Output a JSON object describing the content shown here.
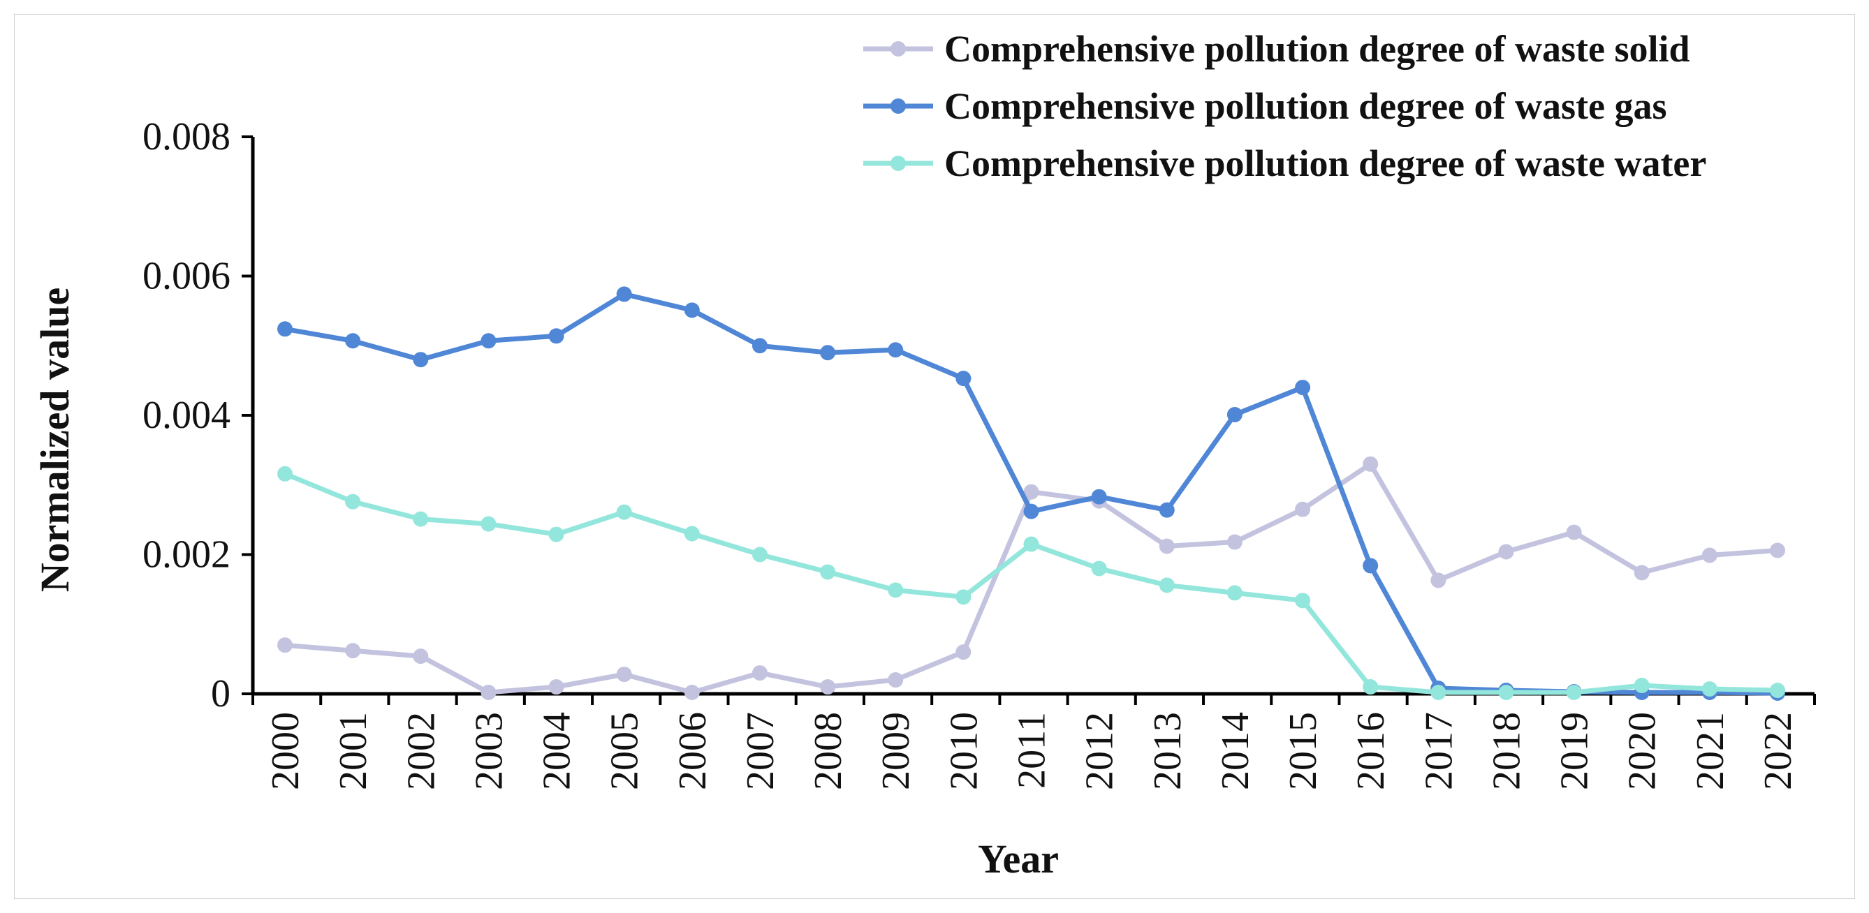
{
  "chart_data": {
    "type": "line",
    "title": "",
    "xlabel": "Year",
    "ylabel": "Normalized value",
    "ylim": [
      0,
      0.008
    ],
    "yticks": [
      {
        "value": 0,
        "label": "0"
      },
      {
        "value": 0.002,
        "label": "0.002"
      },
      {
        "value": 0.004,
        "label": "0.004"
      },
      {
        "value": 0.006,
        "label": "0.006"
      },
      {
        "value": 0.008,
        "label": "0.008"
      }
    ],
    "categories": [
      "2000",
      "2001",
      "2002",
      "2003",
      "2004",
      "2005",
      "2006",
      "2007",
      "2008",
      "2009",
      "2010",
      "2011",
      "2012",
      "2013",
      "2014",
      "2015",
      "2016",
      "2017",
      "2018",
      "2019",
      "2020",
      "2021",
      "2022"
    ],
    "legend_position": "top-right",
    "grid": false,
    "series": [
      {
        "name": "Comprehensive pollution degree of waste solid",
        "color": "#c3c3df",
        "values": [
          0.0007,
          0.00062,
          0.00054,
          2e-05,
          0.0001,
          0.00028,
          2e-05,
          0.0003,
          0.0001,
          0.0002,
          0.0006,
          0.0029,
          0.00277,
          0.00212,
          0.00218,
          0.00265,
          0.0033,
          0.00163,
          0.00204,
          0.00232,
          0.00174,
          0.00199,
          0.00206
        ]
      },
      {
        "name": "Comprehensive pollution degree of waste gas",
        "color": "#4f86d6",
        "values": [
          0.00524,
          0.00507,
          0.0048,
          0.00507,
          0.00514,
          0.00574,
          0.00551,
          0.005,
          0.0049,
          0.00494,
          0.00453,
          0.00262,
          0.00283,
          0.00264,
          0.00401,
          0.0044,
          0.00184,
          8e-05,
          5e-05,
          3e-05,
          2e-05,
          2e-05,
          1e-05
        ]
      },
      {
        "name": "Comprehensive pollution degree of waste water",
        "color": "#93e6db",
        "values": [
          0.00316,
          0.00276,
          0.00251,
          0.00244,
          0.00229,
          0.00261,
          0.0023,
          0.002,
          0.00175,
          0.00149,
          0.00139,
          0.00215,
          0.0018,
          0.00156,
          0.00145,
          0.00134,
          0.0001,
          2e-05,
          2e-05,
          2e-05,
          0.00012,
          7e-05,
          5e-05
        ]
      }
    ]
  }
}
